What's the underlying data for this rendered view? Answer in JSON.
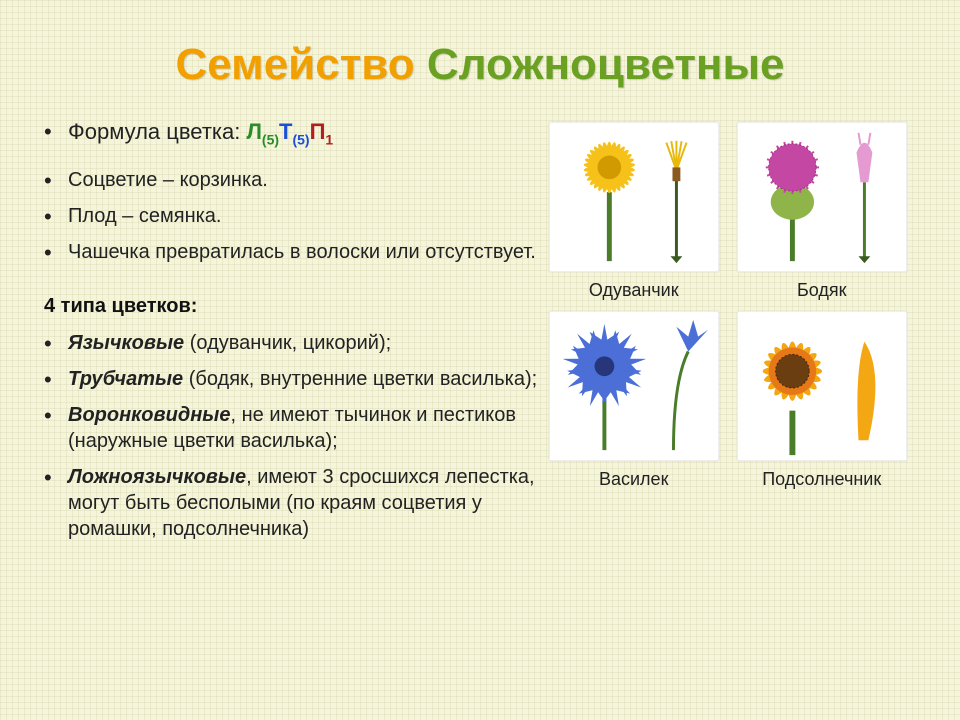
{
  "title": {
    "t1": "Семейство",
    "t2": "Сложноцветные",
    "t1_color": "#f2a000",
    "t2_color": "#6aa122"
  },
  "formula": {
    "label": "Формула цветка: ",
    "L": "Л",
    "Lsub": "(5)",
    "T": "Т",
    "Tsub": "(5)",
    "P": "П",
    "Psub": "1"
  },
  "bullets_top": [
    "Соцветие – корзинка.",
    "Плод – семянка.",
    "Чашечка превратилась в волоски или отсутствует."
  ],
  "types_header": "4 типа цветков:",
  "types": [
    {
      "b": "Язычковые",
      "rest": " (одуванчик, цикорий);"
    },
    {
      "b": "Трубчатые",
      "rest": " (бодяк, внутренние цветки василька);"
    },
    {
      "b": "Воронковидные",
      "rest": ", не имеют тычинок и пестиков (наружные цветки василька);"
    },
    {
      "b": "Ложноязычковые",
      "rest": ", имеют 3 сросшихся лепестка, могут быть бесполыми (по краям соцветия у ромашки, подсолнечника)"
    }
  ],
  "plants": [
    {
      "name": "Одуванчик",
      "kind": "dandelion"
    },
    {
      "name": "Бодяк",
      "kind": "thistle"
    },
    {
      "name": "Василек",
      "kind": "cornflower"
    },
    {
      "name": "Подсолнечник",
      "kind": "sunflower"
    }
  ],
  "colors": {
    "dandelion_petal": "#f6c21a",
    "dandelion_center": "#d19a00",
    "stem": "#4a7c2a",
    "thistle_head": "#c447a3",
    "thistle_body": "#8fb54a",
    "thistle_tube": "#e59ad2",
    "cornflower_petal": "#4b6fd6",
    "cornflower_center": "#27357b",
    "sunflower_petal": "#f3a712",
    "sunflower_dark": "#6b3e12",
    "sunflower_ring": "#e67817",
    "floret_yellow": "#e8b90d",
    "floret_stem": "#3a5a20"
  }
}
